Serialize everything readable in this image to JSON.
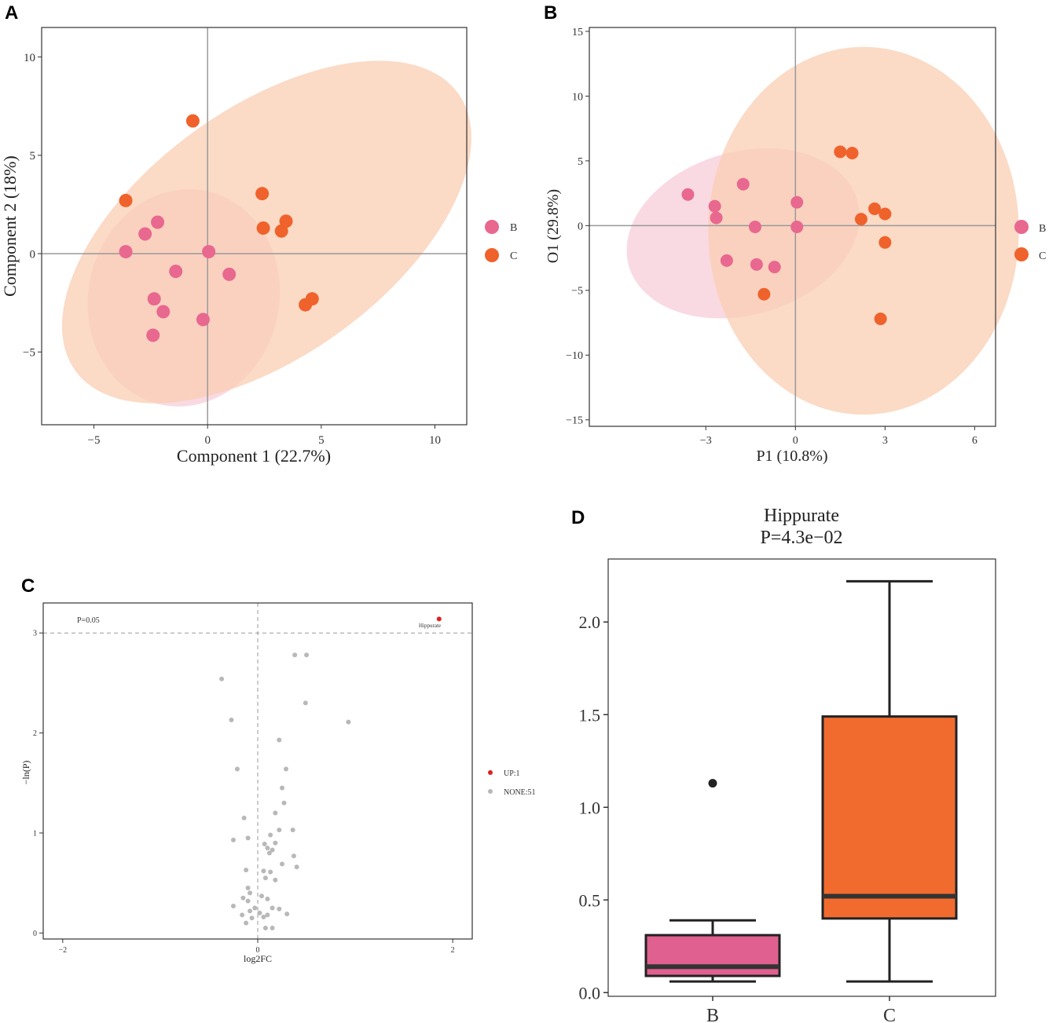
{
  "panels": {
    "a": "A",
    "b": "B",
    "c": "C",
    "d": "D"
  },
  "colors": {
    "B": "#e8688f",
    "C": "#f0622b",
    "ellipseB": "#f7cad6",
    "ellipseC": "#f9cdb3",
    "up": "#e02020",
    "none": "#b8b8b8",
    "boxB": "#e06090",
    "boxC": "#f26b2e"
  },
  "chart_data": [
    {
      "id": "A",
      "type": "scatter",
      "xlabel": "Component 1 (22.7%)",
      "ylabel": "Component 2 (18%)",
      "xlim": [
        -7.3,
        11.4
      ],
      "ylim": [
        -8.7,
        11.5
      ],
      "xticks": [
        -5,
        0,
        5,
        10
      ],
      "yticks": [
        -5,
        0,
        5,
        10
      ],
      "xtick_labels": [
        "−5",
        "0",
        "5",
        "10"
      ],
      "ytick_labels": [
        "−5",
        "0",
        "5",
        "10"
      ],
      "legend": [
        "B",
        "C"
      ],
      "ellipses": [
        {
          "group": "B",
          "cx": -1.05,
          "cy": -2.25,
          "rx": 4.2,
          "ry": 5.55,
          "angle": 12
        },
        {
          "group": "C",
          "cx": 2.6,
          "cy": 1.1,
          "rx": 10.4,
          "ry": 6.3,
          "angle": -36
        }
      ],
      "series": [
        {
          "name": "B",
          "points": [
            [
              -3.6,
              0.1
            ],
            [
              -2.75,
              1.0
            ],
            [
              -2.2,
              1.6
            ],
            [
              0.05,
              0.1
            ],
            [
              -1.4,
              -0.9
            ],
            [
              0.95,
              -1.05
            ],
            [
              -2.35,
              -2.3
            ],
            [
              -1.95,
              -2.95
            ],
            [
              -0.2,
              -3.35
            ],
            [
              -2.4,
              -4.15
            ]
          ]
        },
        {
          "name": "C",
          "points": [
            [
              -0.65,
              6.75
            ],
            [
              -3.6,
              2.7
            ],
            [
              2.4,
              3.05
            ],
            [
              2.45,
              1.3
            ],
            [
              3.45,
              1.65
            ],
            [
              3.25,
              1.15
            ],
            [
              4.6,
              -2.3
            ],
            [
              4.3,
              -2.6
            ]
          ]
        }
      ]
    },
    {
      "id": "B",
      "type": "scatter",
      "xlabel": "P1 (10.8%)",
      "ylabel": "O1 (29.8%)",
      "xlim": [
        -6.9,
        6.7
      ],
      "ylim": [
        -15.5,
        15.3
      ],
      "xticks": [
        -3,
        0,
        3,
        6
      ],
      "yticks": [
        -15,
        -10,
        -5,
        0,
        5,
        10,
        15
      ],
      "xtick_labels": [
        "−3",
        "0",
        "3",
        "6"
      ],
      "ytick_labels": [
        "−15",
        "−10",
        "−5",
        "0",
        "5",
        "10",
        "15"
      ],
      "legend": [
        "B",
        "C"
      ],
      "ellipses": [
        {
          "group": "B",
          "cx": -1.75,
          "cy": -0.6,
          "rx": 3.98,
          "ry": 6.3,
          "angle": -16
        },
        {
          "group": "C",
          "cx": 2.28,
          "cy": -0.4,
          "rx": 5.2,
          "ry": 14.2,
          "angle": 0
        }
      ],
      "series": [
        {
          "name": "B",
          "points": [
            [
              -3.6,
              2.4
            ],
            [
              -2.7,
              1.5
            ],
            [
              -2.65,
              0.6
            ],
            [
              -1.75,
              3.2
            ],
            [
              -1.35,
              -0.1
            ],
            [
              0.05,
              1.8
            ],
            [
              0.05,
              -0.1
            ],
            [
              -2.3,
              -2.7
            ],
            [
              -1.3,
              -3.0
            ],
            [
              -0.7,
              -3.2
            ]
          ]
        },
        {
          "name": "C",
          "points": [
            [
              1.5,
              5.7
            ],
            [
              1.9,
              5.6
            ],
            [
              2.65,
              1.3
            ],
            [
              3.0,
              0.9
            ],
            [
              2.2,
              0.5
            ],
            [
              3.0,
              -1.3
            ],
            [
              -1.05,
              -5.3
            ],
            [
              2.85,
              -7.2
            ]
          ]
        }
      ]
    },
    {
      "id": "C",
      "type": "scatter",
      "xlabel": "log2FC",
      "ylabel": "−ln(P)",
      "xlim": [
        -2.2,
        2.2
      ],
      "ylim": [
        -0.06,
        3.3
      ],
      "xticks": [
        -2,
        0,
        2
      ],
      "yticks": [
        0,
        1,
        2,
        3
      ],
      "xtick_labels": [
        "−2",
        "0",
        "2"
      ],
      "ytick_labels": [
        "0",
        "1",
        "2",
        "3"
      ],
      "threshold_y": 3.0,
      "threshold_label": "P=0.05",
      "legend": [
        "UP:1",
        "NONE:51"
      ],
      "annotation": "Hippurate",
      "series": [
        {
          "name": "UP",
          "points": [
            [
              1.86,
              3.14
            ]
          ]
        },
        {
          "name": "NONE",
          "points": [
            [
              0.38,
              2.78
            ],
            [
              0.5,
              2.78
            ],
            [
              -0.37,
              2.54
            ],
            [
              0.49,
              2.3
            ],
            [
              0.93,
              2.11
            ],
            [
              -0.27,
              2.13
            ],
            [
              0.22,
              1.93
            ],
            [
              -0.21,
              1.64
            ],
            [
              0.29,
              1.64
            ],
            [
              0.25,
              1.45
            ],
            [
              0.27,
              1.3
            ],
            [
              0.18,
              1.2
            ],
            [
              -0.14,
              1.15
            ],
            [
              0.22,
              1.03
            ],
            [
              0.36,
              1.03
            ],
            [
              -0.1,
              0.95
            ],
            [
              0.13,
              0.98
            ],
            [
              -0.25,
              0.93
            ],
            [
              0.07,
              0.89
            ],
            [
              0.18,
              0.9
            ],
            [
              0.1,
              0.85
            ],
            [
              0.15,
              0.83
            ],
            [
              0.12,
              0.8
            ],
            [
              0.37,
              0.77
            ],
            [
              0.25,
              0.69
            ],
            [
              0.4,
              0.66
            ],
            [
              -0.12,
              0.63
            ],
            [
              0.06,
              0.62
            ],
            [
              0.13,
              0.61
            ],
            [
              0.08,
              0.55
            ],
            [
              0.18,
              0.53
            ],
            [
              -0.1,
              0.45
            ],
            [
              -0.08,
              0.4
            ],
            [
              0.04,
              0.37
            ],
            [
              -0.15,
              0.35
            ],
            [
              -0.1,
              0.32
            ],
            [
              0.1,
              0.34
            ],
            [
              -0.03,
              0.25
            ],
            [
              -0.25,
              0.27
            ],
            [
              0.15,
              0.25
            ],
            [
              -0.08,
              0.22
            ],
            [
              0.22,
              0.24
            ],
            [
              -0.16,
              0.18
            ],
            [
              0.02,
              0.2
            ],
            [
              0.1,
              0.18
            ],
            [
              0.3,
              0.19
            ],
            [
              -0.06,
              0.15
            ],
            [
              0.06,
              0.16
            ],
            [
              -0.12,
              0.1
            ],
            [
              0.08,
              0.05
            ],
            [
              0.15,
              0.05
            ]
          ]
        }
      ]
    },
    {
      "id": "D",
      "type": "box",
      "title": "Hippurate",
      "subtitle": "P=4.3e−02",
      "categories": [
        "B",
        "C"
      ],
      "ylim": [
        -0.02,
        2.34
      ],
      "yticks": [
        0.0,
        0.5,
        1.0,
        1.5,
        2.0
      ],
      "ytick_labels": [
        "0.0",
        "0.5",
        "1.0",
        "1.5",
        "2.0"
      ],
      "boxes": [
        {
          "name": "B",
          "min": 0.06,
          "q1": 0.09,
          "median": 0.14,
          "q3": 0.31,
          "max": 0.39,
          "outliers": [
            1.13
          ]
        },
        {
          "name": "C",
          "min": 0.06,
          "q1": 0.4,
          "median": 0.52,
          "q3": 1.49,
          "max": 2.22,
          "outliers": []
        }
      ]
    }
  ]
}
